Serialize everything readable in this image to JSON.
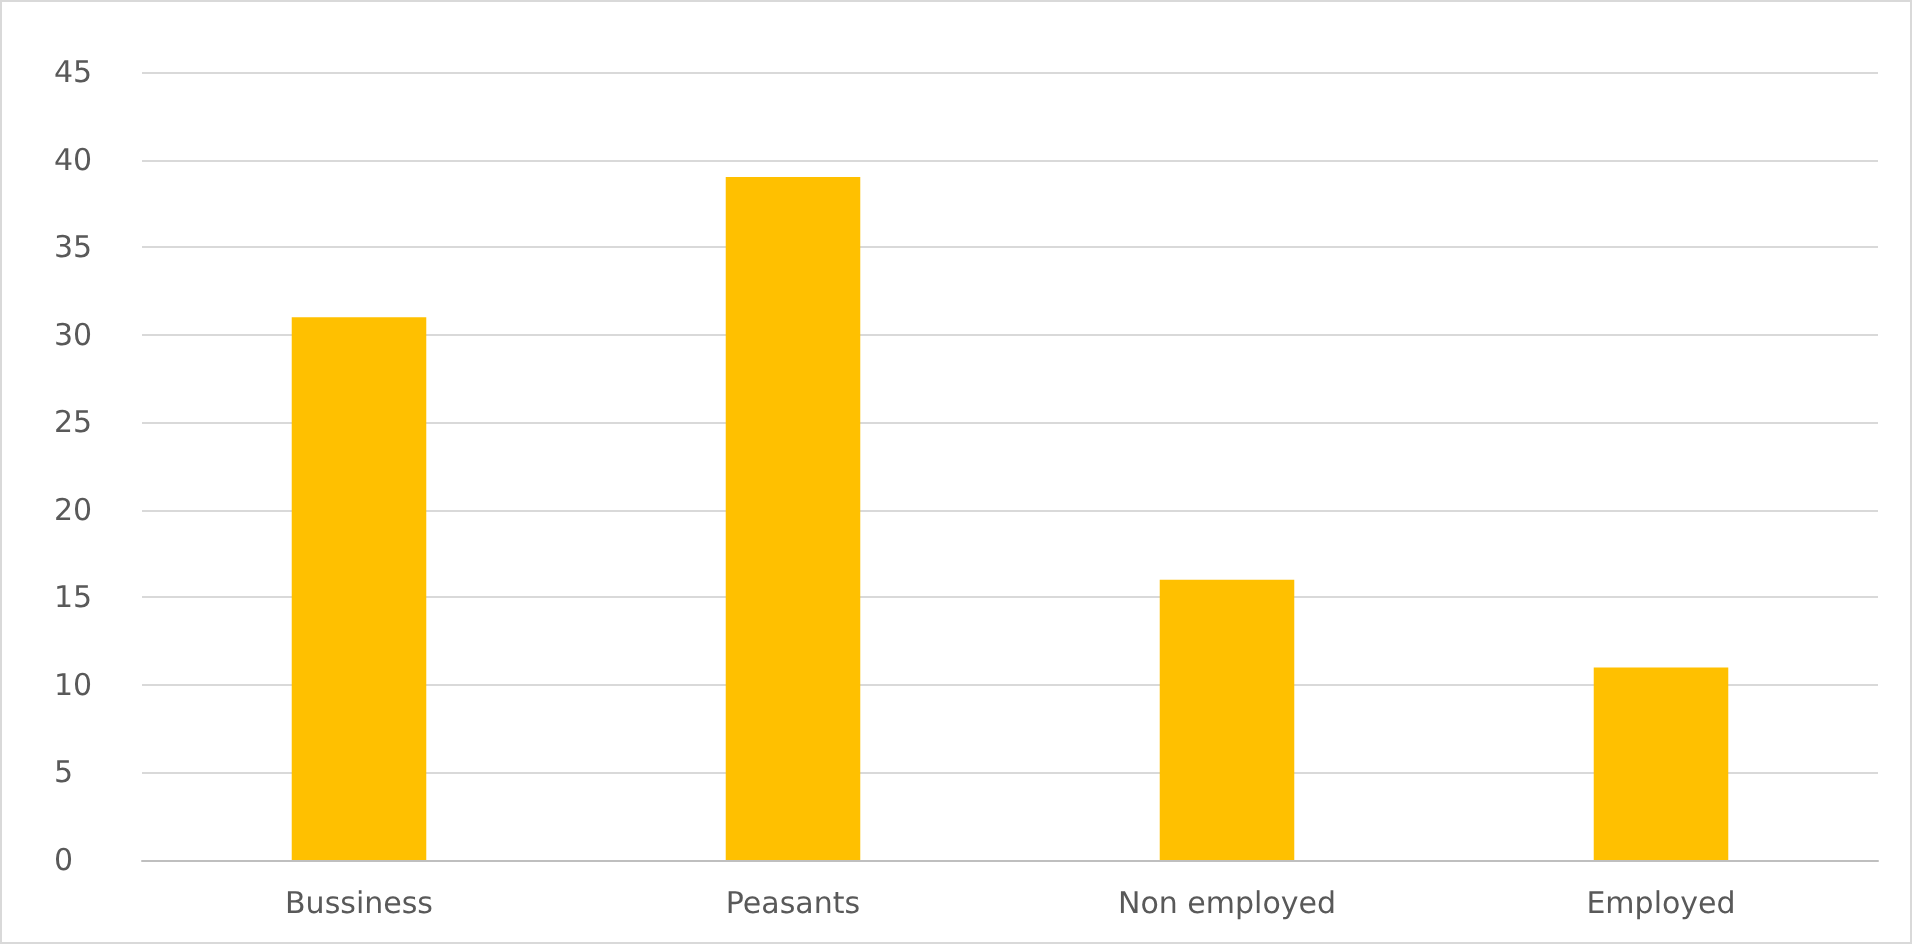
{
  "chart_data": {
    "type": "bar",
    "categories": [
      "Bussiness",
      "Peasants",
      "Non employed",
      "Employed"
    ],
    "values": [
      31,
      39,
      16,
      11
    ],
    "color": "#ffc000",
    "ylim": [
      0,
      45
    ],
    "yticks": [
      0,
      5,
      10,
      15,
      20,
      25,
      30,
      35,
      40,
      45
    ],
    "grid": "y"
  }
}
